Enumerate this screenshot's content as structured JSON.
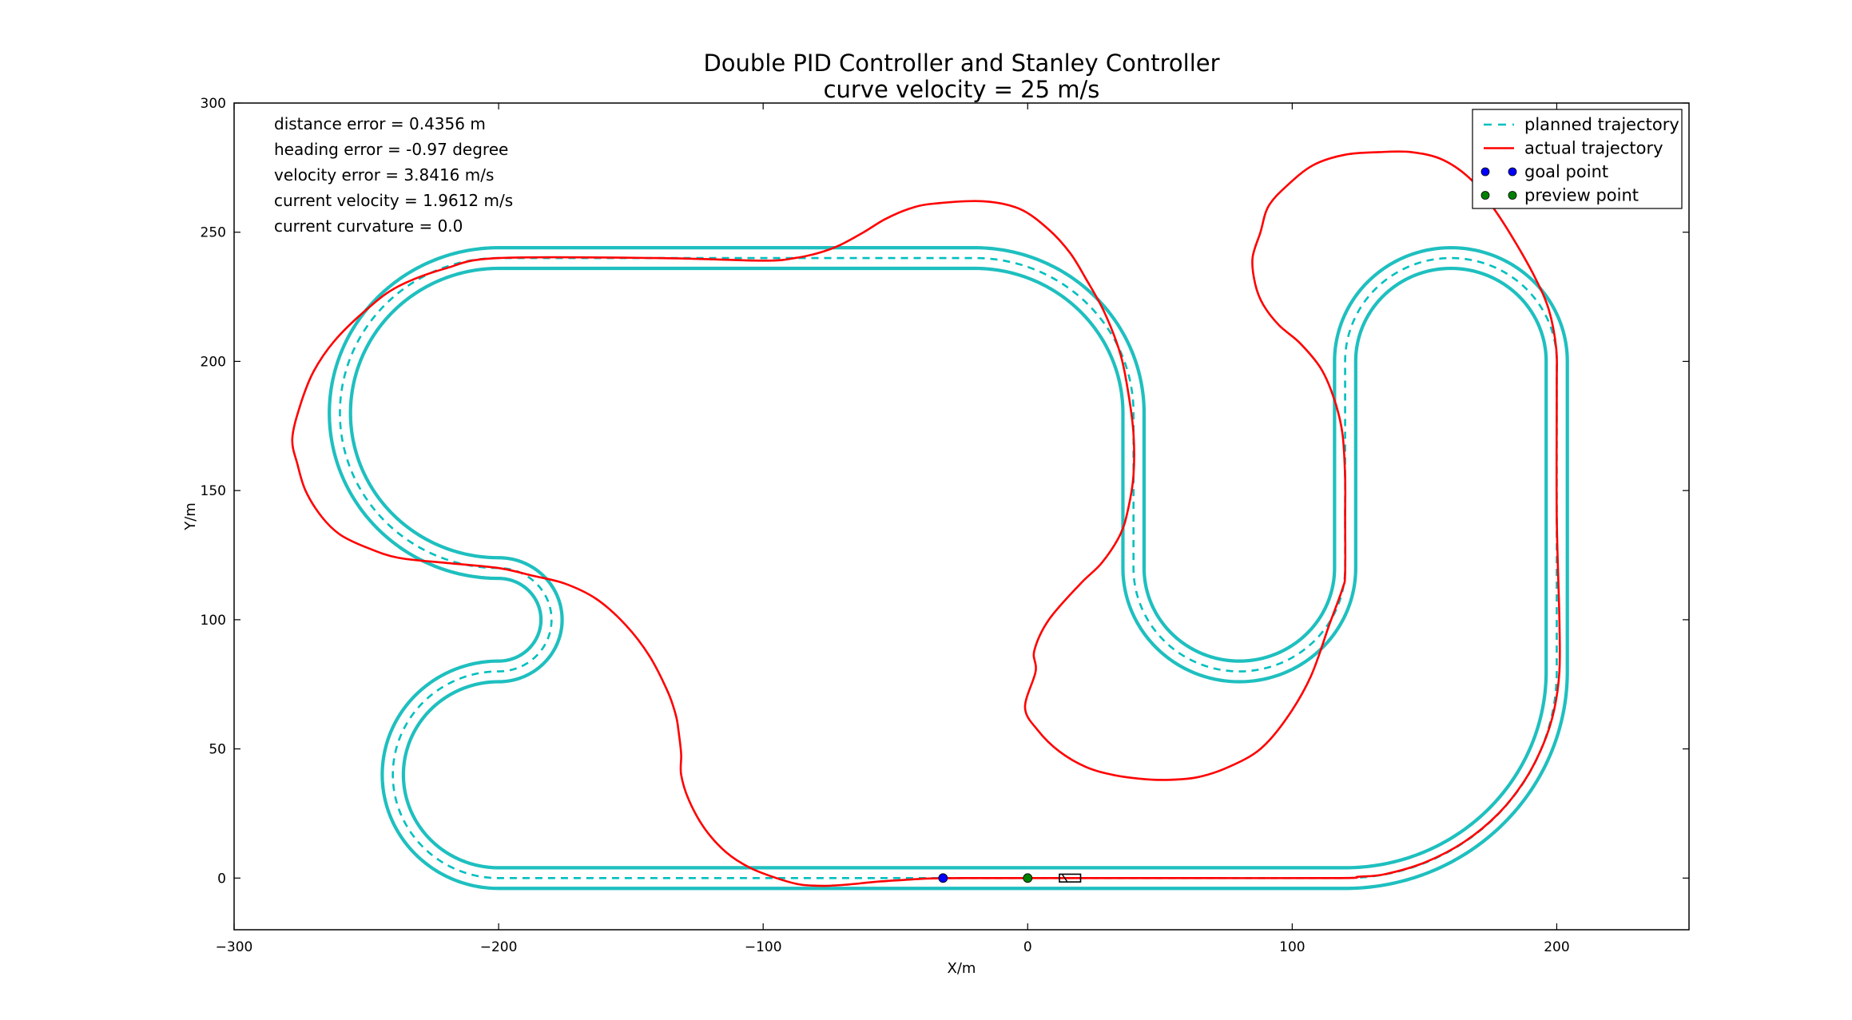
{
  "chart_data": {
    "type": "line",
    "title_lines": [
      "Double PID Controller and Stanley Controller",
      "curve velocity = 25 m/s"
    ],
    "xlabel": "X/m",
    "ylabel": "Y/m",
    "xlim": [
      -300,
      250
    ],
    "ylim": [
      -20,
      300
    ],
    "xticks": [
      -300,
      -200,
      -100,
      0,
      100,
      200
    ],
    "xtick_labels": [
      "−300",
      "−200",
      "−100",
      "0",
      "100",
      "200"
    ],
    "yticks": [
      0,
      50,
      100,
      150,
      200,
      250,
      300
    ],
    "ytick_labels": [
      "0",
      "50",
      "100",
      "150",
      "200",
      "250",
      "300"
    ],
    "grid": false,
    "legend_position": "top-right",
    "info_lines": [
      "distance error = 0.4356 m",
      "heading error = -0.97 degree",
      "velocity error = 3.8416 m/s",
      "current velocity = 1.9612 m/s",
      "current curvature = 0.0"
    ],
    "colors": {
      "planned": "#00bfbf",
      "actual": "#ff0000",
      "goal": "#0000ff",
      "preview": "#008000",
      "boundary": "#1fbfbf"
    },
    "series": [
      {
        "name": "planned trajectory",
        "style": "dashed",
        "path": [
          {
            "seg": "line",
            "from": [
              0,
              0
            ],
            "to": [
              120,
              0
            ]
          },
          {
            "seg": "arc",
            "center": [
              120,
              80
            ],
            "r": 80,
            "start": 270,
            "end": 360
          },
          {
            "seg": "line",
            "from": [
              200,
              80
            ],
            "to": [
              200,
              200
            ]
          },
          {
            "seg": "arc",
            "center": [
              160,
              200
            ],
            "r": 40,
            "start": 0,
            "end": 180
          },
          {
            "seg": "line",
            "from": [
              120,
              200
            ],
            "to": [
              120,
              120
            ]
          },
          {
            "seg": "arc",
            "center": [
              80,
              120
            ],
            "r": 40,
            "start": 0,
            "end": -180
          },
          {
            "seg": "line",
            "from": [
              40,
              120
            ],
            "to": [
              40,
              180
            ]
          },
          {
            "seg": "arc",
            "center": [
              -20,
              180
            ],
            "r": 60,
            "start": 0,
            "end": 90
          },
          {
            "seg": "line",
            "from": [
              -20,
              240
            ],
            "to": [
              -200,
              240
            ]
          },
          {
            "seg": "arc",
            "center": [
              -200,
              180
            ],
            "r": 60,
            "start": 90,
            "end": 270
          },
          {
            "seg": "arc",
            "center": [
              -200,
              100
            ],
            "r": 20,
            "start": 90,
            "end": -90
          },
          {
            "seg": "arc",
            "center": [
              -200,
              40
            ],
            "r": 40,
            "start": 90,
            "end": 270
          },
          {
            "seg": "line",
            "from": [
              -200,
              0
            ],
            "to": [
              0,
              0
            ]
          }
        ]
      },
      {
        "name": "actual trajectory",
        "style": "solid",
        "points": [
          [
            0,
            0
          ],
          [
            60,
            0
          ],
          [
            118,
            0
          ],
          [
            125,
            0.5
          ],
          [
            135,
            1.5
          ],
          [
            150,
            6
          ],
          [
            165,
            14
          ],
          [
            178,
            25
          ],
          [
            188,
            38
          ],
          [
            195,
            52
          ],
          [
            199,
            65
          ],
          [
            201,
            80
          ],
          [
            201,
            100
          ],
          [
            200,
            140
          ],
          [
            200,
            190
          ],
          [
            199.8,
            205
          ],
          [
            197,
            220
          ],
          [
            192,
            232
          ],
          [
            185,
            245
          ],
          [
            177,
            258
          ],
          [
            168,
            270
          ],
          [
            157,
            278
          ],
          [
            145,
            281
          ],
          [
            133,
            281
          ],
          [
            120,
            280
          ],
          [
            108,
            276
          ],
          [
            98,
            268
          ],
          [
            91,
            260
          ],
          [
            88,
            250
          ],
          [
            85,
            240
          ],
          [
            86,
            230
          ],
          [
            89,
            222
          ],
          [
            95,
            214
          ],
          [
            103,
            207
          ],
          [
            111,
            197
          ],
          [
            116,
            185
          ],
          [
            119,
            172
          ],
          [
            120,
            155
          ],
          [
            120,
            140
          ],
          [
            120,
            118
          ],
          [
            119,
            112
          ],
          [
            114,
            98
          ],
          [
            107,
            78
          ],
          [
            98,
            62
          ],
          [
            88,
            50
          ],
          [
            76,
            43
          ],
          [
            64,
            39
          ],
          [
            52,
            38
          ],
          [
            42,
            38.5
          ],
          [
            32,
            40
          ],
          [
            22,
            43
          ],
          [
            12,
            49
          ],
          [
            4,
            57
          ],
          [
            -1,
            66
          ],
          [
            3,
            80
          ],
          [
            2.5,
            88
          ],
          [
            8,
            100
          ],
          [
            20,
            114
          ],
          [
            28,
            122
          ],
          [
            35,
            133
          ],
          [
            38,
            143
          ],
          [
            40,
            156
          ],
          [
            40,
            172
          ],
          [
            38,
            188
          ],
          [
            35,
            203
          ],
          [
            29,
            219
          ],
          [
            22,
            232
          ],
          [
            16,
            242
          ],
          [
            8,
            251
          ],
          [
            -3,
            259
          ],
          [
            -17,
            262
          ],
          [
            -36,
            261
          ],
          [
            -45,
            259
          ],
          [
            -54,
            255
          ],
          [
            -62,
            250
          ],
          [
            -71,
            245
          ],
          [
            -79,
            242
          ],
          [
            -88,
            240
          ],
          [
            -100,
            239
          ],
          [
            -140,
            240
          ],
          [
            -200,
            240
          ],
          [
            -220,
            236
          ],
          [
            -238,
            229
          ],
          [
            -250,
            220
          ],
          [
            -262,
            208
          ],
          [
            -270,
            196
          ],
          [
            -275,
            183
          ],
          [
            -278,
            170
          ],
          [
            -276,
            160
          ],
          [
            -273,
            150
          ],
          [
            -267,
            140
          ],
          [
            -260,
            133
          ],
          [
            -250,
            128
          ],
          [
            -238,
            124
          ],
          [
            -220,
            122
          ],
          [
            -200,
            120
          ],
          [
            -187,
            117
          ],
          [
            -175,
            114
          ],
          [
            -163,
            108
          ],
          [
            -152,
            98
          ],
          [
            -143,
            86
          ],
          [
            -136,
            72
          ],
          [
            -133,
            63
          ],
          [
            -132,
            57
          ],
          [
            -131,
            48
          ],
          [
            -131,
            40
          ],
          [
            -128,
            30
          ],
          [
            -122,
            19
          ],
          [
            -114,
            10
          ],
          [
            -105,
            4
          ],
          [
            -95,
            0
          ],
          [
            -86,
            -2.5
          ],
          [
            -77,
            -3
          ],
          [
            -68,
            -2.5
          ],
          [
            -58,
            -1.5
          ],
          [
            -48,
            -0.8
          ],
          [
            -38,
            -0.2
          ],
          [
            -25,
            0
          ],
          [
            0,
            0
          ]
        ]
      },
      {
        "name": "goal point",
        "style": "marker",
        "points": [
          [
            -32,
            0
          ]
        ]
      },
      {
        "name": "preview point",
        "style": "marker",
        "points": [
          [
            0,
            0
          ]
        ]
      }
    ],
    "track_boundaries": [
      {
        "offset": 4,
        "start_gap_x": [
          -3,
          0
        ]
      },
      {
        "offset": -4,
        "start_gap_x": [
          -3,
          0
        ]
      }
    ],
    "vehicle": {
      "x": 16,
      "y": 0,
      "length": 8,
      "width": 3
    }
  }
}
